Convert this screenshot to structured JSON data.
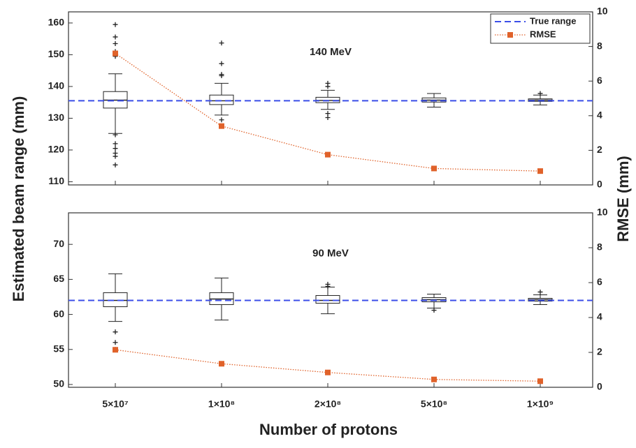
{
  "chart_data": [
    {
      "type": "box",
      "title": "140 MeV",
      "y_label": "Estimated beam range (mm)",
      "y2_label": "RMSE (mm)",
      "boxes": [
        {
          "whislo": 125.2,
          "q1": 133.2,
          "med": 135.7,
          "q3": 138.4,
          "whishi": 144,
          "fliers": [
            159.5,
            155.6,
            153.5,
            151,
            149.5,
            124.8,
            122,
            120.5,
            119,
            118,
            115.3
          ]
        },
        {
          "whislo": 131,
          "q1": 134.3,
          "med": 135.5,
          "q3": 137.3,
          "whishi": 141,
          "fliers": [
            153.7,
            147.2,
            143.8,
            143.4,
            129.5
          ]
        },
        {
          "whislo": 132.8,
          "q1": 134.9,
          "med": 135.6,
          "q3": 136.6,
          "whishi": 138.8,
          "fliers": [
            141,
            140,
            131.5,
            130.2
          ]
        },
        {
          "whislo": 133.5,
          "q1": 135.1,
          "med": 135.7,
          "q3": 136.4,
          "whishi": 137.8,
          "fliers": []
        },
        {
          "whislo": 134.2,
          "q1": 135.3,
          "med": 135.7,
          "q3": 136.1,
          "whishi": 137.3,
          "fliers": [
            137.8
          ]
        }
      ],
      "reference_line": {
        "name": "True range",
        "value": 135.5,
        "color": "#3b4ee8"
      },
      "series": [
        {
          "name": "RMSE",
          "color": "#e0622a",
          "axis": "y2",
          "values": [
            7.6,
            3.4,
            1.75,
            0.95,
            0.8
          ]
        }
      ],
      "ylim": [
        109,
        163.5
      ],
      "yticks": [
        110,
        120,
        130,
        140,
        150,
        160
      ],
      "y2lim": [
        0,
        10
      ],
      "y2ticks": [
        0,
        2,
        4,
        6,
        8,
        10
      ],
      "legend": "upper right"
    },
    {
      "type": "box",
      "title": "90 MeV",
      "x_label": "Number of protons",
      "categories": [
        "5×10⁷",
        "1×10⁸",
        "2×10⁸",
        "5×10⁸",
        "1×10⁹"
      ],
      "boxes": [
        {
          "whislo": 59,
          "q1": 61.1,
          "med": 62,
          "q3": 63.1,
          "whishi": 65.8,
          "fliers": [
            57.5,
            56,
            55
          ]
        },
        {
          "whislo": 59.2,
          "q1": 61.4,
          "med": 62.2,
          "q3": 63.1,
          "whishi": 65.2,
          "fliers": []
        },
        {
          "whislo": 60.1,
          "q1": 61.6,
          "med": 62,
          "q3": 62.7,
          "whishi": 63.9,
          "fliers": [
            64.3,
            64
          ]
        },
        {
          "whislo": 60.9,
          "q1": 61.8,
          "med": 62.1,
          "q3": 62.4,
          "whishi": 62.9,
          "fliers": [
            60.6
          ]
        },
        {
          "whislo": 61.4,
          "q1": 61.9,
          "med": 62.1,
          "q3": 62.3,
          "whishi": 62.8,
          "fliers": [
            63.2
          ]
        }
      ],
      "reference_line": {
        "value": 62,
        "color": "#3b4ee8"
      },
      "series": [
        {
          "color": "#e0622a",
          "axis": "y2",
          "values": [
            2.15,
            1.35,
            0.85,
            0.45,
            0.35
          ]
        }
      ],
      "ylim": [
        49.6,
        74.5
      ],
      "yticks": [
        50,
        55,
        60,
        65,
        70
      ],
      "y2lim": [
        0,
        10
      ],
      "y2ticks": [
        0,
        2,
        4,
        6,
        8,
        10
      ]
    }
  ]
}
